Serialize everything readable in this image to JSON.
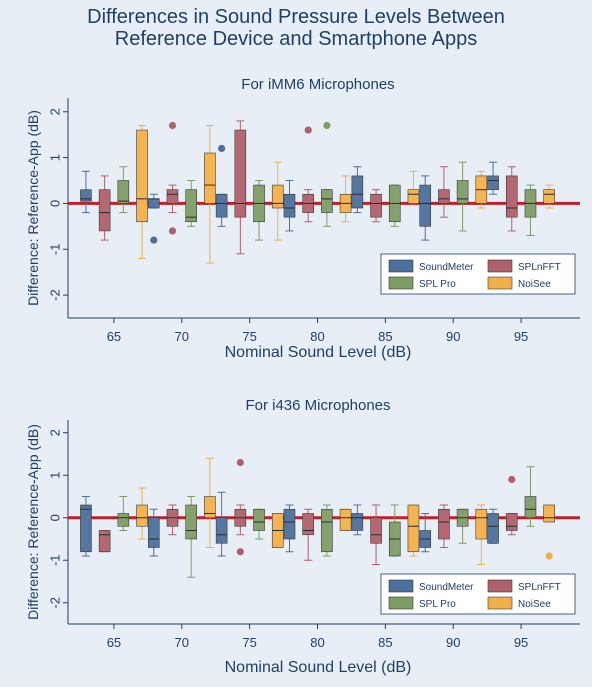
{
  "title_line1": "Differences in Sound Pressure Levels Between",
  "title_line2": "Reference Device and Smartphone Apps",
  "colors": {
    "background": "#e8eef5",
    "reference_line": "#c0202a",
    "SoundMeter": "#4d6f9b",
    "SPLnFFT": "#b0606a",
    "SPL Pro": "#7e9c66",
    "NoiSee": "#f2b04c"
  },
  "chart_data": [
    {
      "type": "box",
      "title": "For iMM6 Microphones",
      "xlabel": "Nominal Sound Level (dB)",
      "ylabel": "Difference: Reference-App (dB)",
      "x_ticks": [
        65,
        70,
        75,
        80,
        85,
        90,
        95
      ],
      "y_ticks": [
        2,
        1,
        0,
        -1,
        -2
      ],
      "ylim": [
        -2.5,
        2.3
      ],
      "reference_line": 0,
      "legend": [
        "SoundMeter",
        "SPLnFFT",
        "SPL Pro",
        "NoiSee"
      ],
      "legend_position": "bottom-right",
      "groups": [
        {
          "level": 65,
          "boxes": [
            {
              "series": "SoundMeter",
              "whisker_low": -0.2,
              "q1": 0.05,
              "median": 0.1,
              "q3": 0.3,
              "whisker_high": 0.7,
              "outliers": []
            },
            {
              "series": "SPLnFFT",
              "whisker_low": -0.8,
              "q1": -0.6,
              "median": -0.2,
              "q3": 0.3,
              "whisker_high": 0.6,
              "outliers": []
            },
            {
              "series": "SPL Pro",
              "whisker_low": -0.2,
              "q1": 0.0,
              "median": 0.05,
              "q3": 0.5,
              "whisker_high": 0.8,
              "outliers": []
            },
            {
              "series": "NoiSee",
              "whisker_low": -1.2,
              "q1": -0.4,
              "median": 0.1,
              "q3": 1.6,
              "whisker_high": 1.7,
              "outliers": []
            }
          ]
        },
        {
          "level": 70,
          "boxes": [
            {
              "series": "SoundMeter",
              "whisker_low": -0.1,
              "q1": -0.1,
              "median": 0.1,
              "q3": 0.1,
              "whisker_high": 0.2,
              "outliers": [
                -0.8
              ]
            },
            {
              "series": "SPLnFFT",
              "whisker_low": -0.2,
              "q1": 0.0,
              "median": 0.2,
              "q3": 0.3,
              "whisker_high": 0.4,
              "outliers": [
                1.7,
                -0.6
              ]
            },
            {
              "series": "SPL Pro",
              "whisker_low": -0.5,
              "q1": -0.4,
              "median": -0.3,
              "q3": 0.3,
              "whisker_high": 0.5,
              "outliers": []
            },
            {
              "series": "NoiSee",
              "whisker_low": -1.3,
              "q1": 0.0,
              "median": 0.4,
              "q3": 1.1,
              "whisker_high": 1.7,
              "outliers": []
            }
          ]
        },
        {
          "level": 75,
          "boxes": [
            {
              "series": "SoundMeter",
              "whisker_low": -0.5,
              "q1": -0.3,
              "median": 0.0,
              "q3": 0.2,
              "whisker_high": 0.2,
              "outliers": [
                1.2
              ]
            },
            {
              "series": "SPLnFFT",
              "whisker_low": -1.1,
              "q1": -0.3,
              "median": 0.0,
              "q3": 1.6,
              "whisker_high": 1.8,
              "outliers": []
            },
            {
              "series": "SPL Pro",
              "whisker_low": -0.8,
              "q1": -0.4,
              "median": 0.0,
              "q3": 0.4,
              "whisker_high": 0.5,
              "outliers": []
            },
            {
              "series": "NoiSee",
              "whisker_low": -0.8,
              "q1": -0.1,
              "median": 0.0,
              "q3": 0.4,
              "whisker_high": 0.9,
              "outliers": []
            }
          ]
        },
        {
          "level": 80,
          "boxes": [
            {
              "series": "SoundMeter",
              "whisker_low": -0.6,
              "q1": -0.3,
              "median": -0.1,
              "q3": 0.2,
              "whisker_high": 0.5,
              "outliers": []
            },
            {
              "series": "SPLnFFT",
              "whisker_low": -0.4,
              "q1": -0.2,
              "median": 0.0,
              "q3": 0.2,
              "whisker_high": 0.3,
              "outliers": [
                1.6
              ]
            },
            {
              "series": "SPL Pro",
              "whisker_low": -0.5,
              "q1": -0.2,
              "median": 0.1,
              "q3": 0.3,
              "whisker_high": 0.3,
              "outliers": [
                1.7
              ]
            },
            {
              "series": "NoiSee",
              "whisker_low": -0.4,
              "q1": -0.2,
              "median": 0.0,
              "q3": 0.2,
              "whisker_high": 0.6,
              "outliers": []
            }
          ]
        },
        {
          "level": 85,
          "boxes": [
            {
              "series": "SoundMeter",
              "whisker_low": -0.2,
              "q1": -0.1,
              "median": 0.2,
              "q3": 0.6,
              "whisker_high": 0.8,
              "outliers": []
            },
            {
              "series": "SPLnFFT",
              "whisker_low": -0.4,
              "q1": -0.3,
              "median": 0.0,
              "q3": 0.2,
              "whisker_high": 0.3,
              "outliers": []
            },
            {
              "series": "SPL Pro",
              "whisker_low": -0.5,
              "q1": -0.4,
              "median": 0.0,
              "q3": 0.4,
              "whisker_high": 0.4,
              "outliers": []
            },
            {
              "series": "NoiSee",
              "whisker_low": 0.0,
              "q1": 0.0,
              "median": 0.2,
              "q3": 0.3,
              "whisker_high": 0.7,
              "outliers": []
            }
          ]
        },
        {
          "level": 90,
          "boxes": [
            {
              "series": "SoundMeter",
              "whisker_low": -0.8,
              "q1": -0.5,
              "median": 0.0,
              "q3": 0.4,
              "whisker_high": 0.6,
              "outliers": []
            },
            {
              "series": "SPLnFFT",
              "whisker_low": -0.3,
              "q1": 0.0,
              "median": 0.1,
              "q3": 0.3,
              "whisker_high": 0.8,
              "outliers": []
            },
            {
              "series": "SPL Pro",
              "whisker_low": -0.6,
              "q1": 0.0,
              "median": 0.1,
              "q3": 0.5,
              "whisker_high": 0.9,
              "outliers": []
            },
            {
              "series": "NoiSee",
              "whisker_low": -0.1,
              "q1": 0.0,
              "median": 0.3,
              "q3": 0.6,
              "whisker_high": 0.7,
              "outliers": []
            }
          ]
        },
        {
          "level": 95,
          "boxes": [
            {
              "series": "SoundMeter",
              "whisker_low": 0.2,
              "q1": 0.3,
              "median": 0.5,
              "q3": 0.6,
              "whisker_high": 0.9,
              "outliers": []
            },
            {
              "series": "SPLnFFT",
              "whisker_low": -0.6,
              "q1": -0.3,
              "median": -0.1,
              "q3": 0.6,
              "whisker_high": 0.8,
              "outliers": []
            },
            {
              "series": "SPL Pro",
              "whisker_low": -0.7,
              "q1": -0.3,
              "median": 0.0,
              "q3": 0.3,
              "whisker_high": 0.4,
              "outliers": []
            },
            {
              "series": "NoiSee",
              "whisker_low": -0.1,
              "q1": 0.0,
              "median": 0.2,
              "q3": 0.3,
              "whisker_high": 0.4,
              "outliers": []
            }
          ]
        }
      ]
    },
    {
      "type": "box",
      "title": "For i436 Microphones",
      "xlabel": "Nominal Sound Level (dB)",
      "ylabel": "Difference: Reference-App (dB)",
      "x_ticks": [
        65,
        70,
        75,
        80,
        85,
        90,
        95
      ],
      "y_ticks": [
        2,
        1,
        0,
        -1,
        -2
      ],
      "ylim": [
        -2.5,
        2.3
      ],
      "reference_line": 0,
      "legend": [
        "SoundMeter",
        "SPLnFFT",
        "SPL Pro",
        "NoiSee"
      ],
      "legend_position": "bottom-right",
      "groups": [
        {
          "level": 65,
          "boxes": [
            {
              "series": "SoundMeter",
              "whisker_low": -0.9,
              "q1": -0.8,
              "median": 0.2,
              "q3": 0.3,
              "whisker_high": 0.5,
              "outliers": []
            },
            {
              "series": "SPLnFFT",
              "whisker_low": -0.8,
              "q1": -0.8,
              "median": -0.4,
              "q3": -0.3,
              "whisker_high": -0.3,
              "outliers": []
            },
            {
              "series": "SPL Pro",
              "whisker_low": -0.3,
              "q1": -0.2,
              "median": 0.0,
              "q3": 0.1,
              "whisker_high": 0.5,
              "outliers": []
            },
            {
              "series": "NoiSee",
              "whisker_low": -0.5,
              "q1": -0.2,
              "median": 0.0,
              "q3": 0.3,
              "whisker_high": 0.7,
              "outliers": []
            }
          ]
        },
        {
          "level": 70,
          "boxes": [
            {
              "series": "SoundMeter",
              "whisker_low": -0.9,
              "q1": -0.7,
              "median": -0.5,
              "q3": 0.0,
              "whisker_high": 0.2,
              "outliers": []
            },
            {
              "series": "SPLnFFT",
              "whisker_low": -0.4,
              "q1": -0.2,
              "median": 0.0,
              "q3": 0.2,
              "whisker_high": 0.3,
              "outliers": []
            },
            {
              "series": "SPL Pro",
              "whisker_low": -1.4,
              "q1": -0.5,
              "median": -0.3,
              "q3": 0.3,
              "whisker_high": 0.5,
              "outliers": []
            },
            {
              "series": "NoiSee",
              "whisker_low": -0.7,
              "q1": 0.0,
              "median": 0.1,
              "q3": 0.5,
              "whisker_high": 1.4,
              "outliers": []
            }
          ]
        },
        {
          "level": 75,
          "boxes": [
            {
              "series": "SoundMeter",
              "whisker_low": -0.9,
              "q1": -0.6,
              "median": -0.4,
              "q3": 0.0,
              "whisker_high": 0.6,
              "outliers": []
            },
            {
              "series": "SPLnFFT",
              "whisker_low": -0.4,
              "q1": -0.2,
              "median": 0.0,
              "q3": 0.2,
              "whisker_high": 0.3,
              "outliers": [
                1.3,
                -0.8
              ]
            },
            {
              "series": "SPL Pro",
              "whisker_low": -0.5,
              "q1": -0.3,
              "median": -0.1,
              "q3": 0.2,
              "whisker_high": 0.2,
              "outliers": []
            },
            {
              "series": "NoiSee",
              "whisker_low": -0.7,
              "q1": -0.7,
              "median": -0.3,
              "q3": 0.1,
              "whisker_high": 0.1,
              "outliers": []
            }
          ]
        },
        {
          "level": 80,
          "boxes": [
            {
              "series": "SoundMeter",
              "whisker_low": -0.8,
              "q1": -0.5,
              "median": -0.1,
              "q3": 0.2,
              "whisker_high": 0.3,
              "outliers": []
            },
            {
              "series": "SPLnFFT",
              "whisker_low": -1.0,
              "q1": -0.4,
              "median": -0.3,
              "q3": 0.1,
              "whisker_high": 0.2,
              "outliers": []
            },
            {
              "series": "SPL Pro",
              "whisker_low": -0.9,
              "q1": -0.8,
              "median": -0.1,
              "q3": 0.2,
              "whisker_high": 0.3,
              "outliers": []
            },
            {
              "series": "NoiSee",
              "whisker_low": -0.3,
              "q1": -0.3,
              "median": 0.0,
              "q3": 0.2,
              "whisker_high": 0.2,
              "outliers": []
            }
          ]
        },
        {
          "level": 85,
          "boxes": [
            {
              "series": "SoundMeter",
              "whisker_low": -0.4,
              "q1": -0.3,
              "median": 0.0,
              "q3": 0.1,
              "whisker_high": 0.3,
              "outliers": []
            },
            {
              "series": "SPLnFFT",
              "whisker_low": -1.1,
              "q1": -0.6,
              "median": -0.4,
              "q3": 0.0,
              "whisker_high": 0.3,
              "outliers": []
            },
            {
              "series": "SPL Pro",
              "whisker_low": -0.9,
              "q1": -0.9,
              "median": -0.5,
              "q3": -0.1,
              "whisker_high": 0.3,
              "outliers": []
            },
            {
              "series": "NoiSee",
              "whisker_low": -0.9,
              "q1": -0.8,
              "median": -0.2,
              "q3": 0.3,
              "whisker_high": 0.3,
              "outliers": []
            }
          ]
        },
        {
          "level": 90,
          "boxes": [
            {
              "series": "SoundMeter",
              "whisker_low": -0.8,
              "q1": -0.7,
              "median": -0.5,
              "q3": -0.3,
              "whisker_high": 0.1,
              "outliers": []
            },
            {
              "series": "SPLnFFT",
              "whisker_low": -0.7,
              "q1": -0.5,
              "median": -0.1,
              "q3": 0.2,
              "whisker_high": 0.3,
              "outliers": []
            },
            {
              "series": "SPL Pro",
              "whisker_low": -0.6,
              "q1": -0.2,
              "median": 0.0,
              "q3": 0.2,
              "whisker_high": 0.2,
              "outliers": []
            },
            {
              "series": "NoiSee",
              "whisker_low": -1.1,
              "q1": -0.5,
              "median": 0.0,
              "q3": 0.2,
              "whisker_high": 0.3,
              "outliers": []
            }
          ]
        },
        {
          "level": 95,
          "boxes": [
            {
              "series": "SoundMeter",
              "whisker_low": -0.6,
              "q1": -0.6,
              "median": -0.2,
              "q3": 0.1,
              "whisker_high": 0.2,
              "outliers": []
            },
            {
              "series": "SPLnFFT",
              "whisker_low": -0.4,
              "q1": -0.3,
              "median": -0.2,
              "q3": 0.1,
              "whisker_high": 0.1,
              "outliers": [
                0.9
              ]
            },
            {
              "series": "SPL Pro",
              "whisker_low": -0.2,
              "q1": 0.0,
              "median": 0.2,
              "q3": 0.5,
              "whisker_high": 1.2,
              "outliers": []
            },
            {
              "series": "NoiSee",
              "whisker_low": -0.1,
              "q1": -0.1,
              "median": 0.0,
              "q3": 0.3,
              "whisker_high": 0.3,
              "outliers": [
                -0.9
              ]
            }
          ]
        }
      ]
    }
  ]
}
